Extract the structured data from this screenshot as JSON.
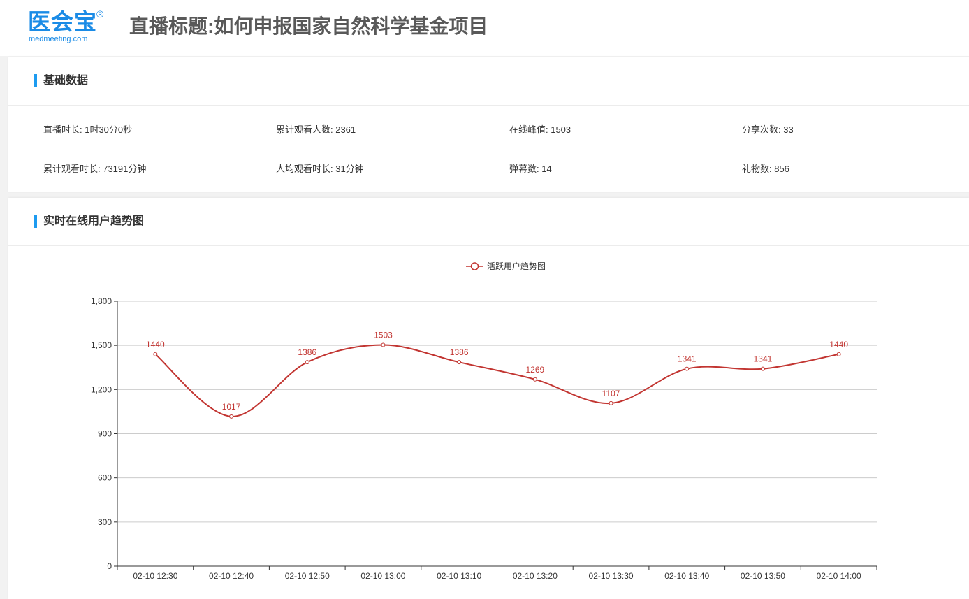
{
  "header": {
    "logo_cn": "医会宝",
    "logo_reg": "®",
    "logo_en": "medmeeting.com",
    "title": "直播标题:如何申报国家自然科学基金项目"
  },
  "basic": {
    "title": "基础数据",
    "stats": [
      "直播时长: 1时30分0秒",
      "累计观看人数: 2361",
      "在线峰值: 1503",
      "分享次数: 33",
      "累计观看时长: 73191分钟",
      "人均观看时长: 31分钟",
      "弹幕数: 14",
      "礼物数: 856"
    ]
  },
  "trend": {
    "title": "实时在线用户趋势图"
  },
  "colors": {
    "accent": "#1d9bf0",
    "series": "#c23531",
    "logo": "#1a8be6"
  },
  "chart_data": {
    "type": "line",
    "smooth": true,
    "categories": [
      "02-10 12:30",
      "02-10 12:40",
      "02-10 12:50",
      "02-10 13:00",
      "02-10 13:10",
      "02-10 13:20",
      "02-10 13:30",
      "02-10 13:40",
      "02-10 13:50",
      "02-10 14:00"
    ],
    "series": [
      {
        "name": "活跃用户趋势图",
        "values": [
          1440,
          1017,
          1386,
          1503,
          1386,
          1269,
          1107,
          1341,
          1341,
          1440
        ]
      }
    ],
    "yticks": [
      "0",
      "300",
      "600",
      "900",
      "1,200",
      "1,500",
      "1,800"
    ],
    "ylim": [
      0,
      1800
    ],
    "grid": true,
    "legend": "top-center",
    "data_labels": true
  }
}
